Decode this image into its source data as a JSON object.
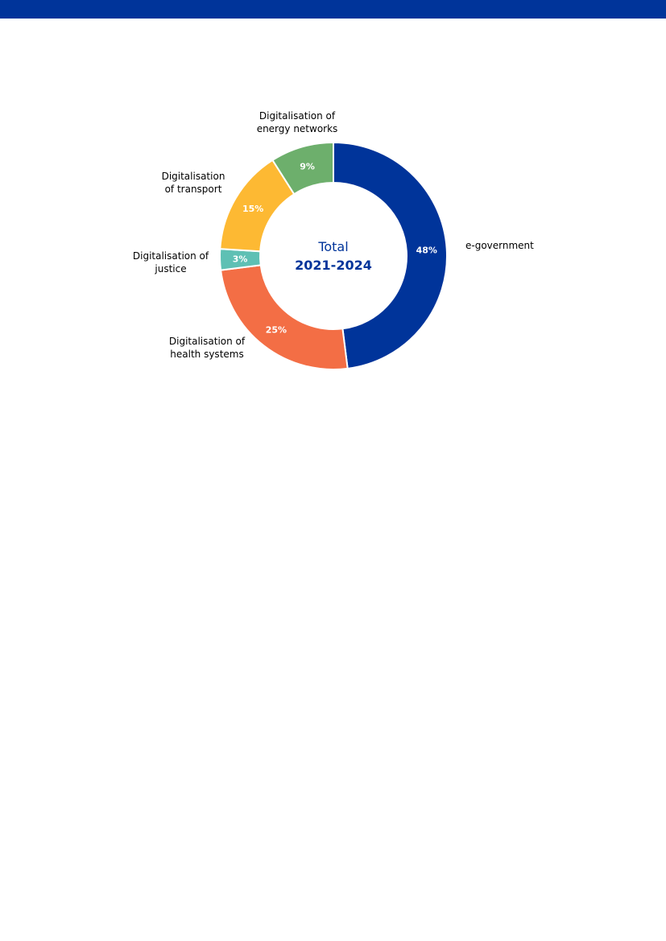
{
  "page": {
    "header_color": "#00349a"
  },
  "chart_data": {
    "type": "pie",
    "subtype": "donut",
    "center_label": {
      "line1": "Total",
      "line2": "2021-2024",
      "color": "#00349a"
    },
    "slices": [
      {
        "label_lines": [
          "e-government"
        ],
        "value": 48,
        "value_label": "48%",
        "color": "#00349a"
      },
      {
        "label_lines": [
          "Digitalisation of",
          "health systems"
        ],
        "value": 25,
        "value_label": "25%",
        "color": "#f36e45"
      },
      {
        "label_lines": [
          "Digitalisation of",
          "justice"
        ],
        "value": 3,
        "value_label": "3%",
        "color": "#5ec0b4"
      },
      {
        "label_lines": [
          "Digitalisation",
          "of transport"
        ],
        "value": 15,
        "value_label": "15%",
        "color": "#fdb933"
      },
      {
        "label_lines": [
          "Digitalisation of",
          "energy networks"
        ],
        "value": 9,
        "value_label": "9%",
        "color": "#6daf6c"
      }
    ],
    "legend": "none"
  }
}
